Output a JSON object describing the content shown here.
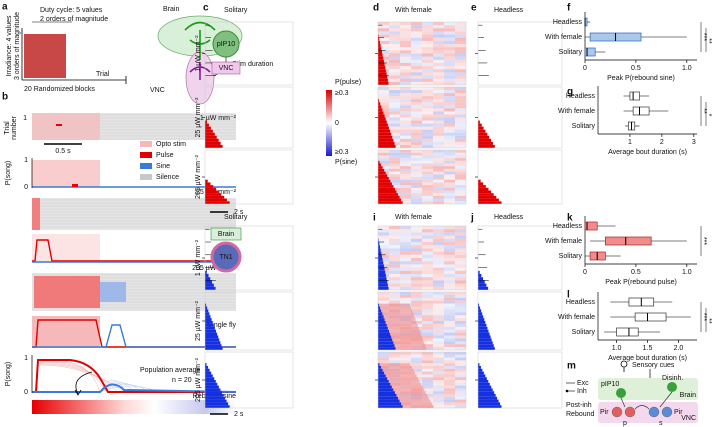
{
  "panel_labels": [
    "a",
    "b",
    "c",
    "d",
    "e",
    "f",
    "g",
    "h",
    "i",
    "j",
    "k",
    "l",
    "m"
  ],
  "panel_a": {
    "y_label_1": "Irradiance: 4 values",
    "y_label_2": "3 orders of magnitude",
    "duty_1": "Duty cycle: 5 values",
    "duty_2": "2 orders of magnitude",
    "x_label": "Trial",
    "blocks": "20 Randomized blocks",
    "brain": "Brain",
    "pip10": "pIP10",
    "tn1": "TN1",
    "vnc": "VNC"
  },
  "panel_b": {
    "trial_1": "Trial",
    "trial_2": "number",
    "trial_tick": "1",
    "irr_1": "1 µW mm⁻²",
    "scale": "0.5 s",
    "legend": [
      "Opto stim",
      "Pulse",
      "Sine",
      "Silence"
    ],
    "psong": "P(song)",
    "p1": "1",
    "p0": "0",
    "irr_2": "25 µW mm⁻²",
    "irr_3": "205 µW mm⁻²",
    "single": "Single fly",
    "pop": "Population average",
    "n": "n = 20",
    "psong_2": "P(song)",
    "p1_2": "1",
    "p0_2": "0",
    "rebound": "Rebound sine"
  },
  "heatmaps": {
    "titles": [
      "Solitary",
      "With female",
      "Headless",
      "Solitary",
      "With female",
      "Headless"
    ],
    "irradiance": [
      "1 µW mm⁻²",
      "25 µW mm⁻²",
      "205 µW mm⁻²"
    ],
    "stim": "Stim duration",
    "scale": "2 s",
    "colorbar": [
      "P(pulse)",
      "≥0.3",
      "0",
      "≥0.3",
      "P(sine)"
    ],
    "inset_c": [
      "pIP10",
      "VNC"
    ],
    "inset_h": [
      "Brain",
      "TN1"
    ]
  },
  "panel_f": {
    "type": "box",
    "categories": [
      "Headless",
      "With female",
      "Solitary"
    ],
    "color": "#a9c8ec",
    "stroke": "#2b66b8",
    "boxes": [
      {
        "min": 0,
        "q1": 0,
        "median": 0,
        "q3": 0.02,
        "max": 0.05
      },
      {
        "min": 0,
        "q1": 0.05,
        "median": 0.3,
        "q3": 0.55,
        "max": 1.0
      },
      {
        "min": 0,
        "q1": 0,
        "median": 0.02,
        "q3": 0.1,
        "max": 0.2
      }
    ],
    "xlim": [
      0,
      1.1
    ],
    "xticks": [
      0,
      0.5,
      {
        "value": 1,
        "label": "1.0"
      }
    ],
    "x_label": "Peak P(rebound sine)",
    "significance": [
      "***",
      "**"
    ]
  },
  "panel_g": {
    "type": "box",
    "categories": [
      "Headless",
      "With female",
      "Solitary"
    ],
    "color": "#ffffff",
    "stroke": "#333333",
    "boxes": [
      {
        "min": 0.8,
        "q1": 1.0,
        "median": 1.1,
        "q3": 1.3,
        "max": 1.6
      },
      {
        "min": 0.8,
        "q1": 1.1,
        "median": 1.3,
        "q3": 1.6,
        "max": 2.2
      },
      {
        "min": 0.85,
        "q1": 0.95,
        "median": 1.05,
        "q3": 1.15,
        "max": 1.3
      }
    ],
    "xlim": [
      0,
      3.1
    ],
    "xticks": [
      1,
      2,
      3
    ],
    "x_label": "Average bout duration (s)",
    "significance": [
      "**",
      "*"
    ]
  },
  "panel_k": {
    "type": "box",
    "categories": [
      "Headless",
      "With female",
      "Solitary"
    ],
    "color": "#f08c8c",
    "stroke": "#b02020",
    "boxes": [
      {
        "min": 0,
        "q1": 0,
        "median": 0.02,
        "q3": 0.12,
        "max": 0.3
      },
      {
        "min": 0.05,
        "q1": 0.2,
        "median": 0.4,
        "q3": 0.65,
        "max": 1.0
      },
      {
        "min": 0,
        "q1": 0.05,
        "median": 0.12,
        "q3": 0.2,
        "max": 0.35
      }
    ],
    "xlim": [
      0,
      1.1
    ],
    "xticks": [
      0,
      0.5,
      {
        "value": 1,
        "label": "1.0"
      }
    ],
    "x_label": "Peak P(rebound pulse)",
    "significance": [
      "***"
    ]
  },
  "panel_l": {
    "type": "box",
    "categories": [
      "Headless",
      "With female",
      "Solitary"
    ],
    "color": "#ffffff",
    "stroke": "#333333",
    "boxes": [
      {
        "min": 0.9,
        "q1": 1.2,
        "median": 1.4,
        "q3": 1.6,
        "max": 1.9
      },
      {
        "min": 0.9,
        "q1": 1.3,
        "median": 1.5,
        "q3": 1.8,
        "max": 2.2
      },
      {
        "min": 0.8,
        "q1": 1.0,
        "median": 1.2,
        "q3": 1.35,
        "max": 1.7
      }
    ],
    "xlim": [
      0.7,
      2.3
    ],
    "xticks": [
      {
        "value": 1,
        "label": "1.0"
      },
      1.5,
      {
        "value": 2,
        "label": "2.0"
      }
    ],
    "x_label": "Average bout duration (s)",
    "significance": [
      "***",
      "**"
    ]
  },
  "panel_m": {
    "cues": "Sensory cues",
    "exc": "Exc",
    "inh": "Inh",
    "pip10": "pIP10",
    "disinh": "Disinh.",
    "brain": "Brain",
    "post_1": "Post-inh",
    "post_2": "Rebound",
    "pir_1": "Pir",
    "pir_2": "Pir",
    "vnc": "VNC",
    "p": "p",
    "s": "s"
  }
}
